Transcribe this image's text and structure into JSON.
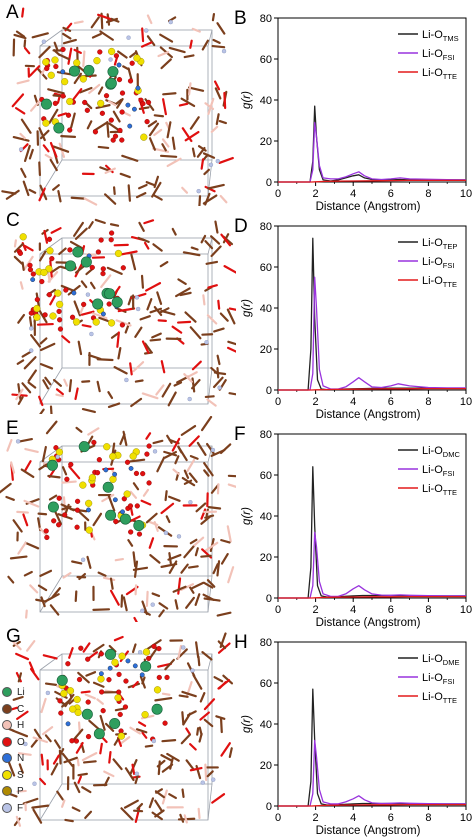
{
  "colors": {
    "li": "#2e9e5e",
    "c": "#7b3f1d",
    "h": "#f2c2b8",
    "o": "#e01010",
    "n": "#2e6fd8",
    "s": "#f0e000",
    "p": "#b08a00",
    "f": "#b9c3e6",
    "black_series": "#222222",
    "purple_series": "#9933dd",
    "red_series": "#e31a1c"
  },
  "panels_left": [
    {
      "letter": "A"
    },
    {
      "letter": "C"
    },
    {
      "letter": "E"
    },
    {
      "letter": "G"
    }
  ],
  "element_legend": [
    "Li",
    "C",
    "H",
    "O",
    "N",
    "S",
    "P",
    "F"
  ],
  "chart_data": [
    {
      "panel": "B",
      "type": "line",
      "xlabel": "Distance (Angstrom)",
      "ylabel": "g(r)",
      "xlim": [
        0,
        10
      ],
      "ylim": [
        0,
        80
      ],
      "xticks": [
        "0",
        "2",
        "4",
        "6",
        "8",
        "10"
      ],
      "yticks": [
        "0",
        "20",
        "40",
        "60",
        "80"
      ],
      "legend_position": "top-right",
      "series": [
        {
          "name": "Li-O",
          "sub": "TMS",
          "color": "#222222",
          "x": [
            0,
            1.7,
            1.85,
            1.95,
            2.05,
            2.2,
            2.4,
            2.8,
            3.2,
            3.6,
            4.0,
            4.3,
            4.6,
            5.0,
            5.5,
            6.0,
            6.5,
            7.0,
            8.0,
            9.0,
            10.0
          ],
          "y": [
            0,
            0,
            10,
            37,
            22,
            6,
            1,
            0.5,
            1,
            2,
            3,
            3.5,
            2,
            1.2,
            1,
            1,
            1.2,
            1,
            1,
            1,
            1
          ]
        },
        {
          "name": "Li-O",
          "sub": "FSI",
          "color": "#9933dd",
          "x": [
            0,
            1.7,
            1.85,
            1.95,
            2.05,
            2.2,
            2.4,
            2.8,
            3.2,
            3.6,
            4.0,
            4.3,
            4.6,
            5.0,
            5.5,
            6.0,
            6.5,
            7.0,
            8.0,
            9.0,
            10.0
          ],
          "y": [
            0,
            0,
            6,
            29,
            22,
            8,
            2,
            1.5,
            1.5,
            2.5,
            4,
            5,
            3,
            1.5,
            1.2,
            1.5,
            2,
            1.5,
            1.3,
            1.1,
            1
          ]
        },
        {
          "name": "Li-O",
          "sub": "TTE",
          "color": "#e31a1c",
          "x": [
            0,
            1.8,
            2.0,
            2.5,
            3.0,
            4.0,
            5.0,
            6.0,
            7.0,
            8.0,
            9.0,
            10.0
          ],
          "y": [
            0,
            0,
            0.1,
            0.3,
            0.4,
            0.5,
            0.6,
            0.7,
            0.8,
            0.8,
            0.8,
            0.8
          ]
        }
      ]
    },
    {
      "panel": "D",
      "type": "line",
      "xlabel": "Distance (Angstrom)",
      "ylabel": "g(r)",
      "xlim": [
        0,
        10
      ],
      "ylim": [
        0,
        80
      ],
      "xticks": [
        "0",
        "2",
        "4",
        "6",
        "8",
        "10"
      ],
      "yticks": [
        "0",
        "20",
        "40",
        "60",
        "80"
      ],
      "legend_position": "top-right",
      "series": [
        {
          "name": "Li-O",
          "sub": "TEP",
          "color": "#222222",
          "x": [
            0,
            1.6,
            1.75,
            1.85,
            1.95,
            2.1,
            2.3,
            2.6,
            3.0,
            3.5,
            4.0,
            4.5,
            5.0,
            6.0,
            7.0,
            8.0,
            9.0,
            10.0
          ],
          "y": [
            0,
            0,
            20,
            74,
            35,
            5,
            0.5,
            0.2,
            0.3,
            0.5,
            0.6,
            0.7,
            0.8,
            0.9,
            0.9,
            0.9,
            0.9,
            0.9
          ]
        },
        {
          "name": "Li-O",
          "sub": "FSI",
          "color": "#9933dd",
          "x": [
            0,
            1.7,
            1.85,
            1.95,
            2.05,
            2.2,
            2.4,
            2.8,
            3.2,
            3.6,
            4.0,
            4.3,
            4.6,
            5.0,
            5.5,
            6.0,
            6.4,
            7.0,
            8.0,
            9.0,
            10.0
          ],
          "y": [
            0,
            0,
            8,
            55,
            40,
            10,
            2,
            0.5,
            0.5,
            1.5,
            4,
            6,
            4,
            1.5,
            1.2,
            2,
            3,
            2,
            1.2,
            1,
            1
          ]
        },
        {
          "name": "Li-O",
          "sub": "TTE",
          "color": "#e31a1c",
          "x": [
            0,
            1.8,
            2.0,
            2.5,
            3.0,
            4.0,
            5.0,
            6.0,
            7.0,
            8.0,
            9.0,
            10.0
          ],
          "y": [
            0,
            0,
            0.1,
            0.2,
            0.3,
            0.4,
            0.5,
            0.6,
            0.6,
            0.7,
            0.7,
            0.7
          ]
        }
      ]
    },
    {
      "panel": "F",
      "type": "line",
      "xlabel": "Distance (Angstrom)",
      "ylabel": "g(r)",
      "xlim": [
        0,
        10
      ],
      "ylim": [
        0,
        80
      ],
      "xticks": [
        "0",
        "2",
        "4",
        "6",
        "8",
        "10"
      ],
      "yticks": [
        "0",
        "20",
        "40",
        "60",
        "80"
      ],
      "legend_position": "top-right",
      "series": [
        {
          "name": "Li-O",
          "sub": "DMC",
          "color": "#222222",
          "x": [
            0,
            1.6,
            1.75,
            1.85,
            1.95,
            2.1,
            2.3,
            2.6,
            3.0,
            3.5,
            4.0,
            4.5,
            5.0,
            6.0,
            7.0,
            8.0,
            9.0,
            10.0
          ],
          "y": [
            0,
            0,
            15,
            64,
            35,
            6,
            1,
            0.5,
            0.6,
            0.8,
            1,
            1.2,
            1.2,
            1.2,
            1.1,
            1,
            1,
            1
          ]
        },
        {
          "name": "Li-O",
          "sub": "FSI",
          "color": "#9933dd",
          "x": [
            0,
            1.7,
            1.85,
            1.95,
            2.05,
            2.2,
            2.4,
            2.8,
            3.2,
            3.6,
            4.0,
            4.3,
            4.6,
            5.0,
            5.5,
            6.0,
            6.5,
            7.0,
            8.0,
            9.0,
            10.0
          ],
          "y": [
            0,
            0,
            6,
            32,
            25,
            8,
            2,
            0.8,
            0.8,
            2,
            4.5,
            6,
            4,
            2,
            1.4,
            1.3,
            1.5,
            1.3,
            1.1,
            1,
            1
          ]
        },
        {
          "name": "Li-O",
          "sub": "TTE",
          "color": "#e31a1c",
          "x": [
            0,
            1.8,
            2.0,
            2.5,
            3.0,
            4.0,
            5.0,
            6.0,
            7.0,
            8.0,
            9.0,
            10.0
          ],
          "y": [
            0,
            0,
            0.1,
            0.3,
            0.4,
            0.5,
            0.6,
            0.6,
            0.7,
            0.7,
            0.7,
            0.7
          ]
        }
      ]
    },
    {
      "panel": "H",
      "type": "line",
      "xlabel": "Distance (Angstrom)",
      "ylabel": "g(r)",
      "xlim": [
        0,
        10
      ],
      "ylim": [
        0,
        80
      ],
      "xticks": [
        "0",
        "2",
        "4",
        "6",
        "8",
        "10"
      ],
      "yticks": [
        "0",
        "20",
        "40",
        "60",
        "80"
      ],
      "legend_position": "top-right",
      "series": [
        {
          "name": "Li-O",
          "sub": "DME",
          "color": "#222222",
          "x": [
            0,
            1.6,
            1.75,
            1.85,
            1.95,
            2.1,
            2.3,
            2.6,
            3.0,
            3.5,
            4.0,
            4.5,
            5.0,
            6.0,
            7.0,
            8.0,
            9.0,
            10.0
          ],
          "y": [
            0,
            0,
            12,
            57,
            32,
            6,
            1,
            0.5,
            0.6,
            0.8,
            1,
            1.2,
            1.2,
            1.2,
            1.1,
            1,
            1,
            1
          ]
        },
        {
          "name": "Li-O",
          "sub": "FSI",
          "color": "#9933dd",
          "x": [
            0,
            1.7,
            1.85,
            1.95,
            2.05,
            2.2,
            2.4,
            2.8,
            3.2,
            3.6,
            4.0,
            4.3,
            4.6,
            5.0,
            5.5,
            6.0,
            6.5,
            7.0,
            8.0,
            9.0,
            10.0
          ],
          "y": [
            0,
            0,
            6,
            32,
            24,
            8,
            2,
            1,
            1,
            2,
            3.5,
            5,
            3,
            1.5,
            1.2,
            1.3,
            1.5,
            1.3,
            1.1,
            1,
            1
          ]
        },
        {
          "name": "Li-O",
          "sub": "TTE",
          "color": "#e31a1c",
          "x": [
            0,
            1.8,
            2.0,
            2.5,
            3.0,
            4.0,
            5.0,
            6.0,
            7.0,
            8.0,
            9.0,
            10.0
          ],
          "y": [
            0,
            0,
            0.1,
            0.3,
            0.4,
            0.5,
            0.6,
            0.6,
            0.7,
            0.7,
            0.7,
            0.7
          ]
        }
      ]
    }
  ]
}
